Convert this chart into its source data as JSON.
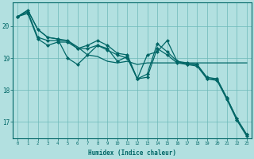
{
  "xlabel": "Humidex (Indice chaleur)",
  "ylabel": "",
  "bg_color": "#b2e0e0",
  "grid_color": "#6db8b8",
  "line_color": "#006666",
  "xlim": [
    -0.5,
    23.5
  ],
  "ylim": [
    16.5,
    20.75
  ],
  "yticks": [
    17,
    18,
    19,
    20
  ],
  "xticks": [
    0,
    1,
    2,
    3,
    4,
    5,
    6,
    7,
    8,
    9,
    10,
    11,
    12,
    13,
    14,
    15,
    16,
    17,
    18,
    19,
    20,
    21,
    22,
    23
  ],
  "series": [
    [
      20.3,
      20.5,
      19.9,
      19.65,
      19.6,
      19.0,
      18.8,
      19.1,
      19.4,
      19.3,
      18.9,
      19.05,
      18.35,
      19.1,
      19.2,
      19.55,
      18.9,
      18.8,
      18.8,
      18.4,
      18.35,
      17.75,
      17.1,
      16.6
    ],
    [
      20.3,
      20.45,
      19.65,
      19.55,
      19.55,
      19.55,
      19.3,
      19.4,
      19.55,
      19.4,
      19.15,
      19.1,
      18.35,
      18.5,
      19.45,
      19.2,
      18.9,
      18.85,
      18.8,
      18.35,
      18.35,
      17.75,
      17.1,
      16.6
    ],
    [
      20.3,
      20.4,
      19.6,
      19.4,
      19.5,
      19.5,
      19.3,
      19.3,
      19.4,
      19.25,
      19.1,
      19.0,
      18.35,
      18.4,
      19.3,
      19.1,
      18.85,
      18.8,
      18.75,
      18.35,
      18.3,
      17.7,
      17.05,
      16.55
    ],
    [
      20.3,
      20.5,
      19.9,
      19.65,
      19.6,
      19.55,
      19.35,
      19.1,
      19.05,
      18.9,
      18.85,
      18.9,
      18.8,
      18.85,
      18.85,
      18.85,
      18.85,
      18.85,
      18.85,
      18.85,
      18.85,
      18.85,
      18.85,
      18.85
    ]
  ],
  "series_has_markers": [
    true,
    true,
    true,
    false
  ],
  "marker": "D",
  "markersize": 2.0,
  "linewidth": 0.9
}
